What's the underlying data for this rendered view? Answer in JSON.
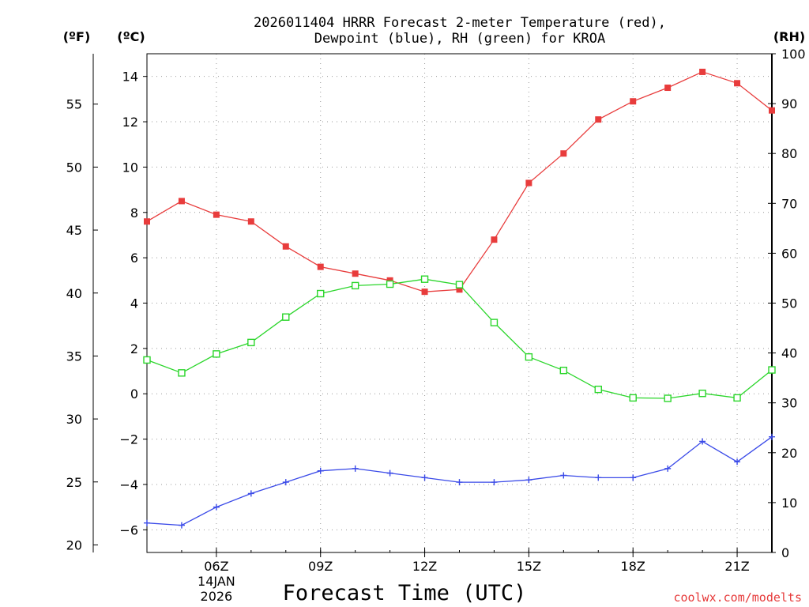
{
  "chart_data": {
    "type": "line",
    "title_line1": "2026011404 HRRR Forecast 2-meter Temperature (red),",
    "title_line2": "Dewpoint (blue), RH (green) for KROA",
    "units": {
      "fahrenheit": "(ºF)",
      "celsius": "(ºC)",
      "rh": "(RH)"
    },
    "xlabel": "Forecast Time (UTC)",
    "credit": "coolwx.com/modelts",
    "x_hours": [
      4,
      5,
      6,
      7,
      8,
      9,
      10,
      11,
      12,
      13,
      14,
      15,
      16,
      17,
      18,
      19,
      20,
      21,
      22
    ],
    "xlim": [
      4,
      22
    ],
    "x_ticks": [
      {
        "hour": 6,
        "label": "06Z",
        "sub1": "14JAN",
        "sub2": "2026"
      },
      {
        "hour": 9,
        "label": "09Z"
      },
      {
        "hour": 12,
        "label": "12Z"
      },
      {
        "hour": 15,
        "label": "15Z"
      },
      {
        "hour": 18,
        "label": "18Z"
      },
      {
        "hour": 21,
        "label": "21Z"
      }
    ],
    "ylim_c": [
      -7,
      15
    ],
    "celsius_ticks": [
      "−6",
      "−4",
      "−2",
      "0",
      "2",
      "4",
      "6",
      "8",
      "10",
      "12",
      "14"
    ],
    "fahrenheit_ticks": [
      "20",
      "25",
      "30",
      "35",
      "40",
      "45",
      "50",
      "55"
    ],
    "rh_ticks": [
      "0",
      "10",
      "20",
      "30",
      "40",
      "50",
      "60",
      "70",
      "80",
      "90",
      "100"
    ],
    "series": [
      {
        "name": "Temperature",
        "unit": "C",
        "color": "#e83c3c",
        "marker": "filled-square",
        "values": [
          7.6,
          8.5,
          7.9,
          7.6,
          6.5,
          5.6,
          5.3,
          5.0,
          4.5,
          4.6,
          6.8,
          9.3,
          10.6,
          12.1,
          12.9,
          13.5,
          14.2,
          13.7,
          12.5
        ]
      },
      {
        "name": "Dewpoint",
        "unit": "C",
        "color": "#3a4ae8",
        "marker": "plus",
        "values": [
          -5.7,
          -5.8,
          -5.0,
          -4.4,
          -3.9,
          -3.4,
          -3.3,
          -3.5,
          -3.7,
          -3.9,
          -3.9,
          -3.8,
          -3.6,
          -3.7,
          -3.7,
          -3.3,
          -2.1,
          -3.0,
          -1.9
        ]
      },
      {
        "name": "RH",
        "unit": "%",
        "color": "#2bd62b",
        "marker": "open-square",
        "values": [
          38.6,
          36.0,
          39.8,
          42.1,
          47.2,
          51.9,
          53.5,
          53.8,
          54.8,
          53.7,
          46.1,
          39.2,
          36.5,
          32.7,
          31.0,
          30.9,
          31.9,
          31.0,
          36.6
        ]
      }
    ]
  }
}
